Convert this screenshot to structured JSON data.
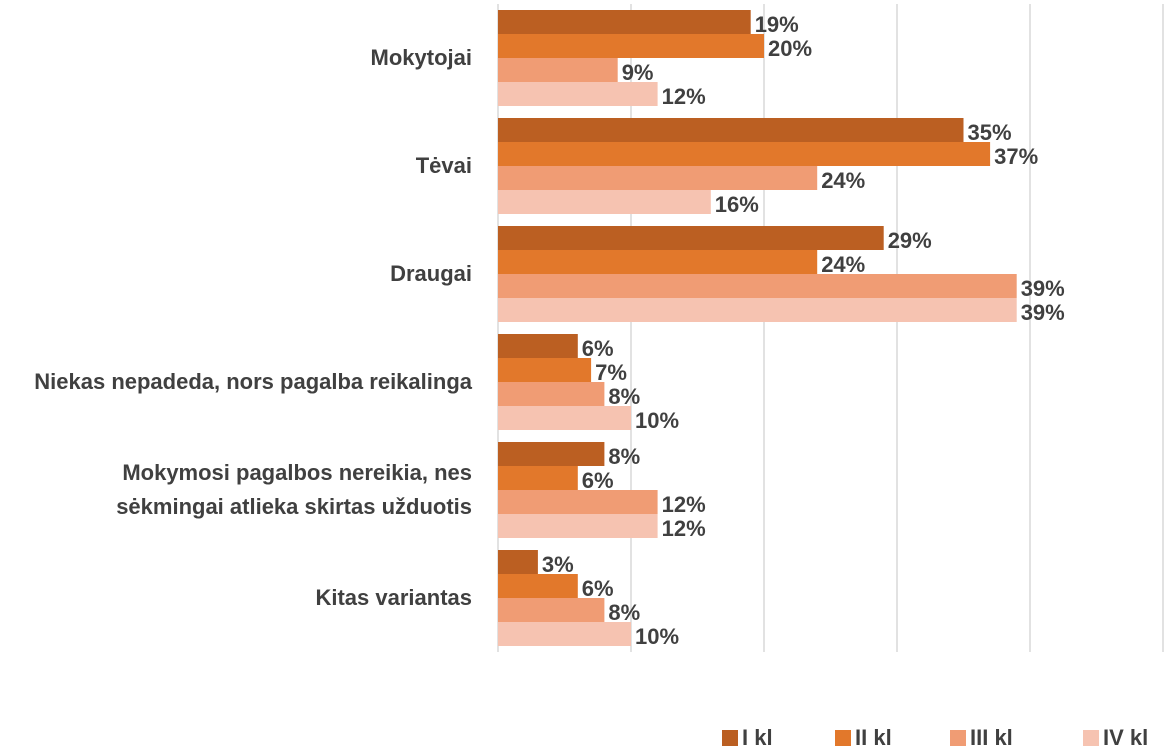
{
  "chart_data": {
    "type": "hbar",
    "categories": [
      "Mokytojai",
      "Tėvai",
      "Draugai",
      "Niekas nepadeda, nors pagalba reikalinga",
      "Mokymosi pagalbos nereikia, nes sėkmingai atlieka skirtas užduotis",
      "Kitas variantas"
    ],
    "series": [
      {
        "name": "I kl",
        "color": "#bb5f22",
        "values": [
          19,
          35,
          29,
          6,
          8,
          3
        ],
        "value_labels": [
          "19%",
          "35%",
          "29%",
          "6%",
          "8%",
          "3%"
        ]
      },
      {
        "name": "II kl",
        "color": "#e2782b",
        "values": [
          20,
          37,
          24,
          7,
          6,
          6
        ],
        "value_labels": [
          "20%",
          "37%",
          "24%",
          "7%",
          "6%",
          "6%"
        ]
      },
      {
        "name": "III kl",
        "color": "#f09c74",
        "values": [
          9,
          24,
          39,
          8,
          12,
          8
        ],
        "value_labels": [
          "9%",
          "24%",
          "39%",
          "8%",
          "12%",
          "8%"
        ]
      },
      {
        "name": "IV kl",
        "color": "#f6c3b1",
        "values": [
          12,
          16,
          39,
          10,
          12,
          10
        ],
        "value_labels": [
          "12%",
          "16%",
          "39%",
          "10%",
          "12%",
          "10%"
        ]
      }
    ],
    "xlim": [
      0,
      50
    ],
    "xticks": [
      0,
      10,
      20,
      30,
      40,
      50
    ],
    "grid": true,
    "legend": "bottom"
  }
}
